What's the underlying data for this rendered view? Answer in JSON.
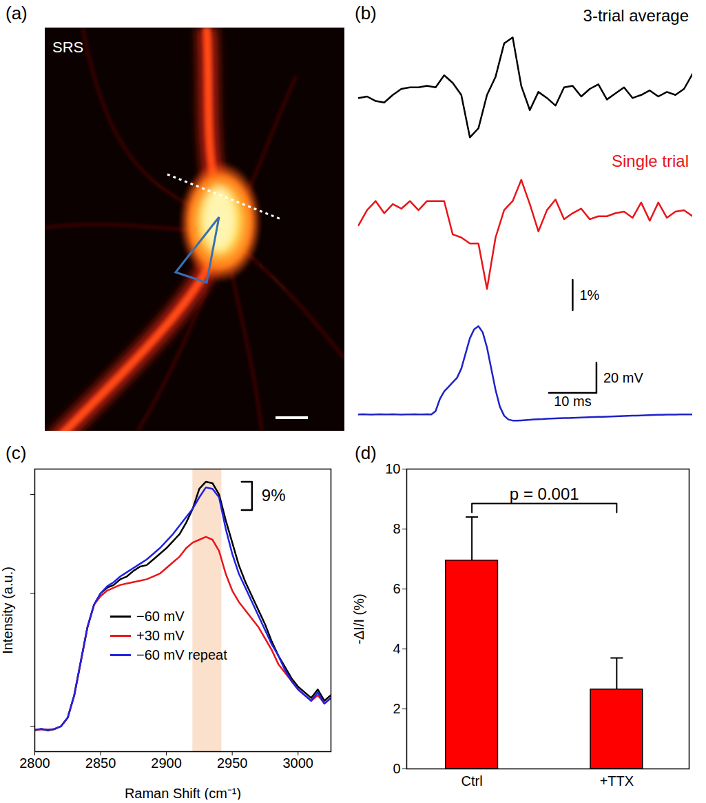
{
  "chart_data": [
    {
      "type": "image",
      "panel": "(a)",
      "text": "SRS"
    },
    {
      "type": "line",
      "panel": "(b)",
      "title": "3-trial average",
      "tick_labels": false,
      "x": [
        0,
        1.8,
        3.6,
        5.4,
        7.2,
        9,
        10.8,
        12.6,
        14.4,
        16.2,
        18,
        19.8,
        21.6,
        23.4,
        25.2,
        27,
        28.8,
        30.6,
        32.4,
        34.2,
        36,
        37.8,
        39.6,
        41.4,
        43.2,
        45,
        46.8,
        48.6,
        50.4,
        52.2,
        54,
        55.8,
        57.6,
        59.4,
        61.2,
        63,
        64.8,
        66.6,
        68.4,
        70.2
      ],
      "series": [
        {
          "color": "#000000",
          "values": [
            0,
            0.05,
            -0.1,
            -0.15,
            0.1,
            0.3,
            0.35,
            0.35,
            0.4,
            0.35,
            0.75,
            0.5,
            0.1,
            -1.3,
            -1.0,
            0.1,
            0.7,
            1.8,
            2.0,
            0.4,
            -0.4,
            0.2,
            0,
            -0.25,
            0.35,
            0.4,
            0.05,
            0.3,
            0.45,
            -0.05,
            0.15,
            0.35,
            0,
            0.1,
            0.25,
            0.05,
            0.2,
            0.1,
            0.3,
            0.8
          ]
        }
      ],
      "xlim": [
        0,
        70.2
      ],
      "ylim": [
        -1.6,
        2.2
      ]
    },
    {
      "type": "line",
      "title": "Single trial",
      "tick_labels": false,
      "x": [
        0,
        1.8,
        3.6,
        5.4,
        7.2,
        9,
        10.8,
        12.6,
        14.4,
        16.2,
        18,
        19.8,
        21.6,
        23.4,
        25.2,
        27,
        28.8,
        30.6,
        32.4,
        34.2,
        36,
        37.8,
        39.6,
        41.4,
        43.2,
        45,
        46.8,
        48.6,
        50.4,
        52.2,
        54,
        55.8,
        57.6,
        59.4,
        61.2,
        63,
        64.8,
        66.6,
        68.4,
        70.2
      ],
      "series": [
        {
          "color": "#e8161b",
          "values": [
            -0.2,
            0.3,
            0.6,
            0.2,
            0.5,
            0.35,
            0.6,
            0.3,
            0.6,
            0.6,
            0.6,
            -0.5,
            -0.6,
            -0.8,
            -0.8,
            -2.3,
            -0.6,
            0.3,
            0.6,
            1.3,
            0.5,
            -0.4,
            0.3,
            0.65,
            0,
            0.2,
            0.35,
            0,
            0.1,
            0.1,
            0.2,
            0.25,
            0.05,
            0.55,
            -0.05,
            0.55,
            0.05,
            0.25,
            0.3,
            0.1
          ]
        }
      ],
      "xlim": [
        0,
        70.2
      ],
      "ylim": [
        -3.1,
        1.4
      ],
      "scale_bars": [
        {
          "x": [
            45,
            45
          ],
          "y": [
            -3,
            -2
          ],
          "label": "1%"
        }
      ]
    },
    {
      "type": "line",
      "tick_labels": false,
      "x": [
        0,
        0.9,
        1.8,
        2.7,
        3.6,
        4.5,
        5.4,
        6.3,
        7.2,
        8.1,
        9,
        9.9,
        10.8,
        11.7,
        12.6,
        13.5,
        14.4,
        15.3,
        16.2,
        17.1,
        18,
        18.9,
        19.8,
        20.7,
        21.6,
        22.5,
        23.4,
        24.3,
        25.2,
        26.1,
        27,
        27.9,
        28.8,
        29.7,
        30.6,
        31.5,
        32.4,
        33.3,
        34.2,
        35.1,
        36,
        36.9,
        37.8,
        38.7,
        39.6,
        40.5,
        41.4,
        42.3,
        43.2,
        44.1,
        45,
        45.9,
        46.8,
        47.7,
        48.6,
        49.5,
        50.4,
        51.3,
        52.2,
        53.1,
        54,
        54.9,
        55.8,
        56.7,
        57.6,
        58.5,
        59.4,
        60.3,
        61.2,
        62.1,
        63,
        63.9,
        64.8,
        65.7,
        66.6,
        67.5,
        68.4,
        69.3,
        70.2
      ],
      "series": [
        {
          "color": "#1e22c8",
          "values": [
            -60.2,
            -60.1,
            -60.2,
            -60.3,
            -60.2,
            -60.1,
            -60.2,
            -60.2,
            -60.1,
            -60.2,
            -60.3,
            -60.2,
            -60.2,
            -60.1,
            -60.2,
            -60.2,
            -60.1,
            -60.2,
            -58,
            -50,
            -45,
            -42,
            -39,
            -36,
            -30,
            -20,
            -10,
            -4,
            -2,
            -6,
            -16,
            -30,
            -44,
            -55,
            -61,
            -63.5,
            -64.2,
            -64.3,
            -64.1,
            -63.9,
            -63.7,
            -63.5,
            -63.3,
            -63.2,
            -63,
            -62.9,
            -62.8,
            -62.7,
            -62.6,
            -62.5,
            -62.4,
            -62.3,
            -62.2,
            -62.1,
            -62,
            -61.9,
            -61.8,
            -61.7,
            -61.6,
            -61.5,
            -61.4,
            -61.3,
            -61.2,
            -61.1,
            -61,
            -60.9,
            -60.8,
            -60.7,
            -60.6,
            -60.5,
            -60.4,
            -60.35,
            -60.3,
            -60.3,
            -60.25,
            -60.2,
            -60.2,
            -60.15,
            -60.1
          ]
        }
      ],
      "xlim": [
        0,
        70.2
      ],
      "ylim": [
        -68,
        2
      ],
      "scale_bars": [
        {
          "x": [
            50,
            50
          ],
          "y": [
            -46,
            -26
          ],
          "label": "20 mV"
        },
        {
          "x": [
            40,
            50
          ],
          "y": [
            -46,
            -46
          ],
          "label": "10 ms"
        }
      ]
    },
    {
      "type": "line",
      "panel": "(c)",
      "xlabel": "Raman Shift (cm⁻¹)",
      "ylabel": "Intensity (a.u.)",
      "tick_labels": "x",
      "legend": "lower left",
      "x": [
        2800,
        2805,
        2810,
        2815,
        2820,
        2825,
        2830,
        2835,
        2840,
        2845,
        2850,
        2855,
        2860,
        2865,
        2870,
        2875,
        2880,
        2885,
        2890,
        2895,
        2900,
        2905,
        2910,
        2915,
        2920,
        2925,
        2930,
        2935,
        2940,
        2945,
        2950,
        2955,
        2960,
        2965,
        2970,
        2975,
        2980,
        2985,
        2990,
        2995,
        3000,
        3005,
        3010,
        3015,
        3020,
        3025
      ],
      "series": [
        {
          "name": "−60 mV",
          "color": "#000000",
          "values": [
            0.076,
            0.08,
            0.075,
            0.08,
            0.09,
            0.12,
            0.2,
            0.32,
            0.44,
            0.52,
            0.56,
            0.58,
            0.59,
            0.61,
            0.62,
            0.64,
            0.655,
            0.66,
            0.68,
            0.7,
            0.72,
            0.745,
            0.77,
            0.81,
            0.86,
            0.93,
            0.955,
            0.95,
            0.91,
            0.82,
            0.74,
            0.66,
            0.6,
            0.55,
            0.5,
            0.45,
            0.39,
            0.34,
            0.3,
            0.26,
            0.23,
            0.21,
            0.19,
            0.22,
            0.18,
            0.2
          ]
        },
        {
          "name": "+30 mV",
          "color": "#e8161b",
          "values": [
            0.075,
            0.08,
            0.078,
            0.08,
            0.09,
            0.12,
            0.2,
            0.32,
            0.44,
            0.52,
            0.55,
            0.57,
            0.58,
            0.59,
            0.595,
            0.6,
            0.605,
            0.61,
            0.62,
            0.63,
            0.65,
            0.67,
            0.69,
            0.72,
            0.74,
            0.75,
            0.76,
            0.75,
            0.71,
            0.63,
            0.57,
            0.53,
            0.5,
            0.47,
            0.44,
            0.4,
            0.36,
            0.31,
            0.28,
            0.25,
            0.22,
            0.2,
            0.18,
            0.2,
            0.17,
            0.19
          ]
        },
        {
          "name": "−60 mV repeat",
          "color": "#1e22e6",
          "values": [
            0.078,
            0.08,
            0.077,
            0.08,
            0.09,
            0.12,
            0.2,
            0.32,
            0.44,
            0.52,
            0.56,
            0.585,
            0.6,
            0.62,
            0.635,
            0.65,
            0.665,
            0.68,
            0.7,
            0.72,
            0.745,
            0.77,
            0.8,
            0.83,
            0.86,
            0.9,
            0.935,
            0.93,
            0.9,
            0.79,
            0.7,
            0.63,
            0.58,
            0.53,
            0.48,
            0.43,
            0.38,
            0.34,
            0.29,
            0.25,
            0.22,
            0.2,
            0.18,
            0.21,
            0.17,
            0.19
          ]
        }
      ],
      "xlim": [
        2800,
        3025
      ],
      "xticks": [
        2800,
        2850,
        2900,
        2950,
        3000
      ],
      "ylim": [
        0,
        1
      ],
      "yticks": [
        0.09,
        0.56,
        0.91
      ],
      "highlight": [
        2920,
        2942
      ],
      "scale_bar": {
        "x": 2965,
        "y": [
          0.855,
          0.955
        ],
        "label": "9%"
      }
    },
    {
      "type": "bar",
      "panel": "(d)",
      "ylabel": "-ΔI/I (%)",
      "categories": [
        "Ctrl",
        "+TTX"
      ],
      "values": [
        6.95,
        2.65
      ],
      "errors": [
        1.45,
        1.05
      ],
      "color": "#ff0000",
      "ylim": [
        0,
        10
      ],
      "yticks": [
        0,
        2,
        4,
        6,
        8,
        10
      ],
      "significance": {
        "label": "p = 0.001",
        "between": [
          "Ctrl",
          "+TTX"
        ],
        "y": 8.85
      }
    }
  ]
}
